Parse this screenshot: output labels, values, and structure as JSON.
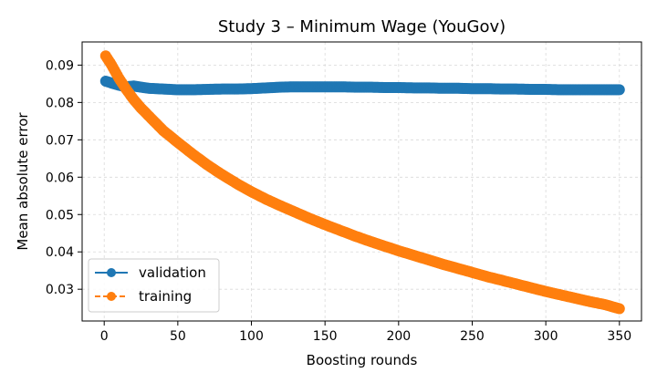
{
  "chart_data": {
    "type": "line",
    "title": "Study 3 – Minimum Wage (YouGov)",
    "xlabel": "Boosting rounds",
    "ylabel": "Mean absolute error",
    "xlim": [
      -15,
      365
    ],
    "ylim": [
      0.0215,
      0.0962
    ],
    "x_ticks": [
      0,
      50,
      100,
      150,
      200,
      250,
      300,
      350
    ],
    "y_ticks": [
      0.03,
      0.04,
      0.05,
      0.06,
      0.07,
      0.08,
      0.09
    ],
    "y_tick_labels": [
      "0.03",
      "0.04",
      "0.05",
      "0.06",
      "0.07",
      "0.08",
      "0.09"
    ],
    "grid": true,
    "legend_position": "lower-left",
    "series": [
      {
        "name": "validation",
        "color": "#1f77b4",
        "line_style": "solid",
        "marker": "circle",
        "x": [
          1,
          5,
          10,
          15,
          20,
          25,
          30,
          40,
          50,
          60,
          70,
          80,
          90,
          100,
          110,
          120,
          130,
          140,
          150,
          160,
          170,
          180,
          190,
          200,
          210,
          220,
          230,
          240,
          250,
          260,
          270,
          280,
          290,
          300,
          310,
          320,
          330,
          340,
          350
        ],
        "values": [
          0.0857,
          0.0852,
          0.0846,
          0.0842,
          0.0844,
          0.0841,
          0.0838,
          0.0836,
          0.0834,
          0.0834,
          0.0835,
          0.0836,
          0.0836,
          0.0837,
          0.0839,
          0.0841,
          0.0842,
          0.0842,
          0.0842,
          0.0842,
          0.0841,
          0.0841,
          0.084,
          0.084,
          0.0839,
          0.0839,
          0.0838,
          0.0838,
          0.0837,
          0.0837,
          0.0836,
          0.0836,
          0.0835,
          0.0835,
          0.0834,
          0.0834,
          0.0834,
          0.0834,
          0.0834
        ]
      },
      {
        "name": "training",
        "color": "#ff7f0e",
        "line_style": "dashed",
        "marker": "circle",
        "x": [
          1,
          5,
          10,
          15,
          20,
          25,
          30,
          40,
          50,
          60,
          70,
          80,
          90,
          100,
          110,
          120,
          130,
          140,
          150,
          160,
          170,
          180,
          190,
          200,
          210,
          220,
          230,
          240,
          250,
          260,
          270,
          280,
          290,
          300,
          310,
          320,
          330,
          340,
          350
        ],
        "values": [
          0.0925,
          0.09,
          0.0865,
          0.0835,
          0.0808,
          0.0785,
          0.0765,
          0.0725,
          0.0693,
          0.0662,
          0.0633,
          0.0607,
          0.0583,
          0.0561,
          0.0541,
          0.0523,
          0.0506,
          0.0489,
          0.0473,
          0.0458,
          0.0443,
          0.0429,
          0.0416,
          0.0403,
          0.0391,
          0.0379,
          0.0367,
          0.0356,
          0.0345,
          0.0334,
          0.0324,
          0.0314,
          0.0304,
          0.0294,
          0.0285,
          0.0276,
          0.0267,
          0.0259,
          0.0248
        ]
      }
    ]
  }
}
